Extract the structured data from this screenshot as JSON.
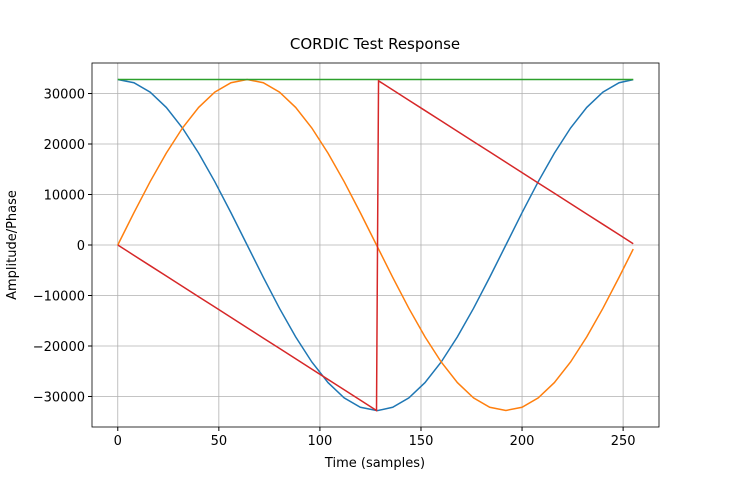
{
  "chart_data": {
    "type": "line",
    "title": "CORDIC Test Response",
    "x_label": "Time (samples)",
    "y_label": "Amplitude/Phase",
    "x": [
      0,
      8,
      16,
      24,
      32,
      40,
      48,
      56,
      64,
      72,
      80,
      88,
      96,
      104,
      112,
      120,
      128,
      129,
      136,
      144,
      152,
      160,
      168,
      176,
      184,
      192,
      200,
      208,
      216,
      224,
      232,
      240,
      248,
      255
    ],
    "series": [
      {
        "color": "#1f77b4",
        "values": [
          32767,
          32138,
          30273,
          27245,
          23170,
          18204,
          12539,
          6393,
          0,
          -6393,
          -12539,
          -18204,
          -23170,
          -27245,
          -30273,
          -32138,
          -32767,
          -32757,
          -32138,
          -30273,
          -27245,
          -23170,
          -18204,
          -12539,
          -6393,
          0,
          6393,
          12539,
          18204,
          23170,
          27245,
          30273,
          32138,
          32757
        ]
      },
      {
        "color": "#ff7f0e",
        "values": [
          0,
          6393,
          12539,
          18204,
          23170,
          27245,
          30273,
          32138,
          32767,
          32138,
          30273,
          27245,
          23170,
          18204,
          12539,
          6393,
          0,
          -804,
          -6393,
          -12539,
          -18204,
          -23170,
          -27245,
          -30273,
          -32138,
          -32767,
          -32138,
          -30273,
          -27245,
          -23170,
          -18204,
          -12539,
          -6393,
          -804
        ]
      },
      {
        "color": "#2ca02c",
        "values": [
          32767,
          32767,
          32767,
          32767,
          32767,
          32767,
          32767,
          32767,
          32767,
          32767,
          32767,
          32767,
          32767,
          32767,
          32767,
          32767,
          32767,
          32767,
          32767,
          32767,
          32767,
          32767,
          32767,
          32767,
          32767,
          32767,
          32767,
          32767,
          32767,
          32767,
          32767,
          32767,
          32767,
          32767
        ]
      },
      {
        "color": "#d62728",
        "values": [
          0,
          -2048,
          -4096,
          -6144,
          -8192,
          -10240,
          -12288,
          -14336,
          -16384,
          -18432,
          -20480,
          -22528,
          -24576,
          -26624,
          -28672,
          -30720,
          -32768,
          32512,
          30720,
          28672,
          26624,
          24576,
          22528,
          20480,
          18432,
          16384,
          14336,
          12288,
          10240,
          8192,
          6144,
          4096,
          2048,
          256
        ]
      }
    ],
    "xlim": [
      -12.75,
      267.75
    ],
    "ylim": [
      -36044,
      36044
    ],
    "xticks": [
      0,
      50,
      100,
      150,
      200,
      250
    ],
    "yticks": [
      {
        "value": -30000,
        "label": "−30000"
      },
      {
        "value": -20000,
        "label": "−20000"
      },
      {
        "value": -10000,
        "label": "−10000"
      },
      0,
      10000,
      20000,
      30000
    ],
    "grid": true
  }
}
